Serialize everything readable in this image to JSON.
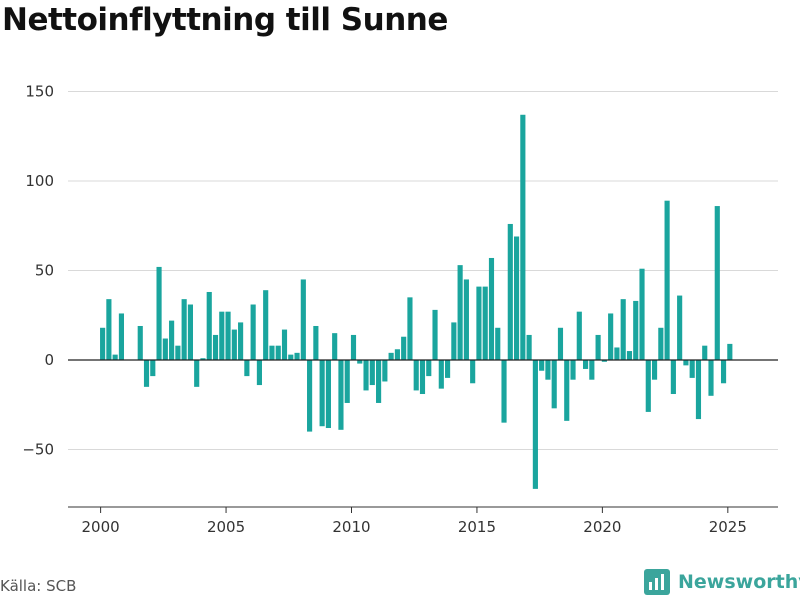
{
  "title": "Nettoinflyttning till Sunne",
  "source": "Källa: SCB",
  "brand": "Newsworthy",
  "colors": {
    "bar": "#1aa59e",
    "brand": "#3ba59c",
    "grid": "#d9d9d9",
    "zero": "#222222"
  },
  "chart_data": {
    "type": "bar",
    "title": "Nettoinflyttning till Sunne",
    "xlabel": "",
    "ylabel": "",
    "grid": true,
    "ylim": [
      -82,
      165
    ],
    "xlim": [
      1998.7,
      2027.0
    ],
    "xticks": [
      2000,
      2005,
      2010,
      2015,
      2020,
      2025
    ],
    "yticks": [
      -50,
      0,
      50,
      100,
      150
    ],
    "ytick_labels": [
      "−50",
      "0",
      "50",
      "100",
      "150"
    ],
    "quarters_start": 2000.0,
    "values": [
      18,
      34,
      3,
      26,
      0,
      0,
      19,
      -15,
      -9,
      52,
      12,
      22,
      8,
      34,
      31,
      -15,
      1,
      38,
      14,
      27,
      27,
      17,
      21,
      -9,
      31,
      -14,
      39,
      8,
      8,
      17,
      3,
      4,
      45,
      -40,
      19,
      -37,
      -38,
      15,
      -39,
      -24,
      14,
      -2,
      -17,
      -14,
      -24,
      -12,
      4,
      6,
      13,
      35,
      -17,
      -19,
      -9,
      28,
      -16,
      -10,
      21,
      53,
      45,
      -13,
      41,
      41,
      57,
      18,
      -35,
      76,
      69,
      137,
      14,
      -72,
      -6,
      -11,
      -27,
      18,
      -34,
      -11,
      27,
      -5,
      -11,
      14,
      -1,
      26,
      7,
      34,
      5,
      33,
      51,
      -29,
      -11,
      18,
      89,
      -19,
      36,
      -3,
      -10,
      -33,
      8,
      -20,
      86,
      -13,
      9
    ]
  }
}
